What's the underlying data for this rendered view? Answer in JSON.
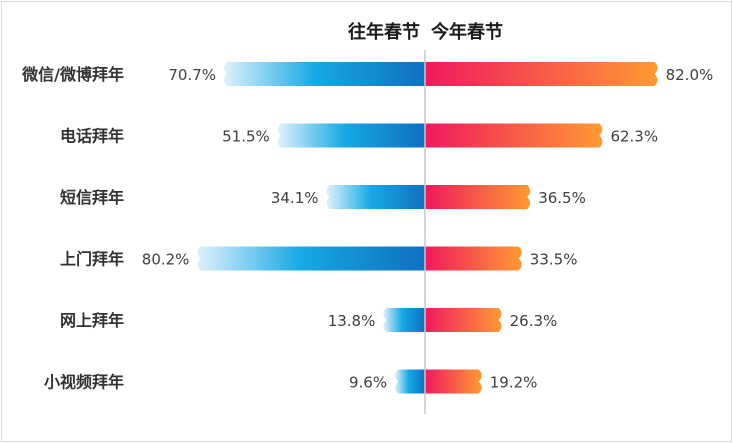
{
  "chart_data": {
    "type": "bar",
    "orientation": "horizontal-diverging",
    "legend_left": "往年春节",
    "legend_right": "今年春节",
    "categories": [
      "微信/微博拜年",
      "电话拜年",
      "短信拜年",
      "上门拜年",
      "网上拜年",
      "小视频拜年"
    ],
    "series": [
      {
        "name": "往年春节",
        "side": "left",
        "values": [
          70.7,
          51.5,
          34.1,
          80.2,
          13.8,
          9.6
        ],
        "labels": [
          "70.7%",
          "51.5%",
          "34.1%",
          "80.2%",
          "13.8%",
          "9.6%"
        ]
      },
      {
        "name": "今年春节",
        "side": "right",
        "values": [
          82.0,
          62.3,
          36.5,
          33.5,
          26.3,
          19.2
        ],
        "labels": [
          "82.0%",
          "62.3%",
          "36.5%",
          "33.5%",
          "26.3%",
          "19.2%"
        ]
      }
    ],
    "unit": "%",
    "colors": {
      "left_start": "#dff1fb",
      "left_mid": "#17a9e6",
      "left_end": "#0f6fc0",
      "right_start": "#f0195e",
      "right_end": "#ff9a33",
      "axis": "#c9c9c9",
      "text": "#404040",
      "category_text": "#333333"
    }
  }
}
